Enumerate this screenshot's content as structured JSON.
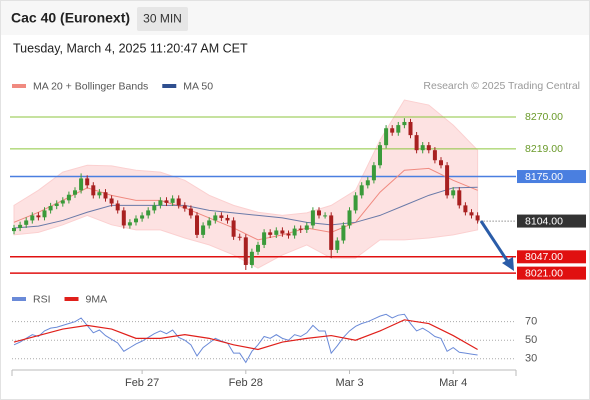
{
  "chart_data": {
    "type": "candlestick",
    "title": "Cac 40 (Euronext)",
    "interval": "30 MIN",
    "timestamp": "Tuesday, March 4, 2025 11:20:47 AM CET",
    "copyright": "Research © 2025 Trading Central",
    "up_color": "#3a9a3a",
    "down_color": "#a82020",
    "ylim": [
      8018,
      8305
    ],
    "xlim": [
      0,
      76
    ],
    "xticks": [
      {
        "value": 21,
        "label": "Feb 27"
      },
      {
        "value": 38,
        "label": "Feb 28"
      },
      {
        "value": 55,
        "label": "Mar 3"
      },
      {
        "value": 72,
        "label": "Mar 4"
      }
    ],
    "open": [
      8088,
      8093,
      8098,
      8105,
      8113,
      8110,
      8121,
      8128,
      8132,
      8137,
      8146,
      8153,
      8172,
      8161,
      8145,
      8150,
      8140,
      8132,
      8121,
      8097,
      8102,
      8108,
      8113,
      8121,
      8129,
      8137,
      8133,
      8140,
      8129,
      8124,
      8113,
      8082,
      8097,
      8105,
      8113,
      8109,
      8105,
      8079,
      8078,
      8034,
      8055,
      8066,
      8086,
      8082,
      8089,
      8084,
      8081,
      8092,
      8090,
      8097,
      8121,
      8113,
      8113,
      8058,
      8073,
      8097,
      8121,
      8145,
      8161,
      8169,
      8193,
      8225,
      8252,
      8245,
      8257,
      8262,
      8241,
      8217,
      8225,
      8217,
      8201,
      8193,
      8145,
      8153,
      8129,
      8118,
      8113
    ],
    "high": [
      8098,
      8103,
      8110,
      8118,
      8118,
      8126,
      8133,
      8137,
      8142,
      8151,
      8158,
      8180,
      8177,
      8166,
      8155,
      8155,
      8145,
      8137,
      8126,
      8107,
      8113,
      8118,
      8126,
      8134,
      8142,
      8142,
      8145,
      8145,
      8134,
      8129,
      8118,
      8102,
      8110,
      8118,
      8118,
      8114,
      8110,
      8084,
      8083,
      8060,
      8071,
      8091,
      8091,
      8094,
      8094,
      8089,
      8097,
      8097,
      8102,
      8126,
      8126,
      8118,
      8118,
      8078,
      8102,
      8126,
      8150,
      8166,
      8174,
      8198,
      8230,
      8257,
      8257,
      8262,
      8268,
      8267,
      8246,
      8230,
      8230,
      8222,
      8206,
      8198,
      8158,
      8158,
      8134,
      8123,
      8118
    ],
    "low": [
      8083,
      8088,
      8093,
      8100,
      8105,
      8105,
      8116,
      8123,
      8127,
      8132,
      8141,
      8148,
      8156,
      8140,
      8140,
      8135,
      8127,
      8116,
      8092,
      8092,
      8097,
      8103,
      8108,
      8116,
      8124,
      8128,
      8128,
      8124,
      8119,
      8108,
      8077,
      8077,
      8092,
      8100,
      8104,
      8100,
      8074,
      8073,
      8026,
      8029,
      8050,
      8061,
      8077,
      8077,
      8079,
      8076,
      8076,
      8085,
      8085,
      8092,
      8108,
      8108,
      8045,
      8053,
      8068,
      8092,
      8116,
      8140,
      8156,
      8164,
      8188,
      8220,
      8240,
      8240,
      8252,
      8236,
      8212,
      8212,
      8212,
      8196,
      8188,
      8140,
      8140,
      8124,
      8113,
      8108,
      8100
    ],
    "close": [
      8093,
      8098,
      8105,
      8113,
      8110,
      8121,
      8128,
      8132,
      8137,
      8146,
      8153,
      8172,
      8161,
      8145,
      8150,
      8140,
      8132,
      8121,
      8097,
      8102,
      8108,
      8113,
      8121,
      8129,
      8137,
      8133,
      8140,
      8129,
      8124,
      8113,
      8082,
      8097,
      8105,
      8113,
      8109,
      8105,
      8079,
      8078,
      8034,
      8055,
      8066,
      8086,
      8082,
      8089,
      8084,
      8081,
      8092,
      8090,
      8097,
      8121,
      8113,
      8113,
      8058,
      8073,
      8097,
      8121,
      8145,
      8161,
      8169,
      8193,
      8225,
      8252,
      8245,
      8257,
      8262,
      8241,
      8217,
      8225,
      8217,
      8201,
      8193,
      8145,
      8153,
      8129,
      8118,
      8113,
      8105
    ],
    "overlays": {
      "x": [
        0,
        4,
        8,
        12,
        16,
        20,
        24,
        28,
        32,
        36,
        40,
        44,
        48,
        52,
        56,
        60,
        64,
        68,
        72,
        76
      ],
      "series": [
        {
          "name": "MA 20 + Bollinger Bands",
          "color": "#f08a80",
          "band_color": "#fde2e2",
          "values": [
            8102,
            8118,
            8137,
            8157,
            8145,
            8137,
            8137,
            8125,
            8109,
            8093,
            8074,
            8082,
            8093,
            8086,
            8102,
            8150,
            8185,
            8188,
            8169,
            8153
          ],
          "upper": [
            8129,
            8153,
            8182,
            8193,
            8192,
            8185,
            8182,
            8169,
            8145,
            8129,
            8118,
            8113,
            8117,
            8129,
            8153,
            8233,
            8297,
            8289,
            8257,
            8217
          ],
          "lower": [
            8082,
            8086,
            8098,
            8113,
            8098,
            8090,
            8090,
            8077,
            8066,
            8050,
            8029,
            8050,
            8066,
            8045,
            8045,
            8074,
            8074,
            8077,
            8082,
            8090
          ]
        },
        {
          "name": "MA 50",
          "color": "#6a7aa8",
          "legend_color": "#2f4f8f",
          "values": [
            8093,
            8096,
            8105,
            8118,
            8129,
            8129,
            8129,
            8129,
            8121,
            8117,
            8113,
            8109,
            8102,
            8098,
            8102,
            8113,
            8129,
            8145,
            8157,
            8158
          ]
        }
      ]
    },
    "levels": [
      {
        "value": 8270,
        "label": "8270.00",
        "color": "#8dc63f",
        "style": "text"
      },
      {
        "value": 8219,
        "label": "8219.00",
        "color": "#8dc63f",
        "style": "text"
      },
      {
        "value": 8175,
        "label": "8175.00",
        "color": "#4a7fe0",
        "style": "box"
      },
      {
        "value": 8104,
        "label": "8104.00",
        "color": "#333333",
        "style": "last"
      },
      {
        "value": 8047,
        "label": "8047.00",
        "color": "#e01010",
        "style": "box"
      },
      {
        "value": 8021,
        "label": "8021.00",
        "color": "#e01010",
        "style": "box"
      }
    ],
    "rsi": {
      "ylim": [
        20,
        88
      ],
      "yticks": [
        30,
        50,
        70
      ],
      "series": [
        {
          "name": "RSI",
          "color": "#6a8ad8",
          "values": [
            45,
            48,
            52,
            56,
            54,
            60,
            63,
            64,
            66,
            68,
            70,
            74,
            66,
            58,
            61,
            55,
            51,
            47,
            38,
            42,
            46,
            49,
            53,
            57,
            60,
            57,
            61,
            53,
            50,
            45,
            33,
            42,
            47,
            52,
            49,
            47,
            36,
            36,
            26,
            38,
            45,
            54,
            52,
            56,
            52,
            50,
            56,
            54,
            58,
            66,
            60,
            60,
            36,
            44,
            53,
            60,
            65,
            68,
            70,
            73,
            76,
            78,
            74,
            77,
            78,
            68,
            60,
            63,
            59,
            54,
            52,
            38,
            42,
            37,
            36,
            35,
            34
          ]
        },
        {
          "name": "9MA",
          "color": "#e0201b",
          "x": [
            0,
            4,
            8,
            12,
            16,
            20,
            24,
            28,
            32,
            36,
            40,
            44,
            48,
            52,
            56,
            60,
            64,
            68,
            72,
            76
          ],
          "values": [
            48,
            55,
            62,
            66,
            62,
            52,
            52,
            56,
            52,
            45,
            40,
            48,
            52,
            55,
            50,
            60,
            72,
            68,
            55,
            40
          ]
        }
      ]
    }
  }
}
